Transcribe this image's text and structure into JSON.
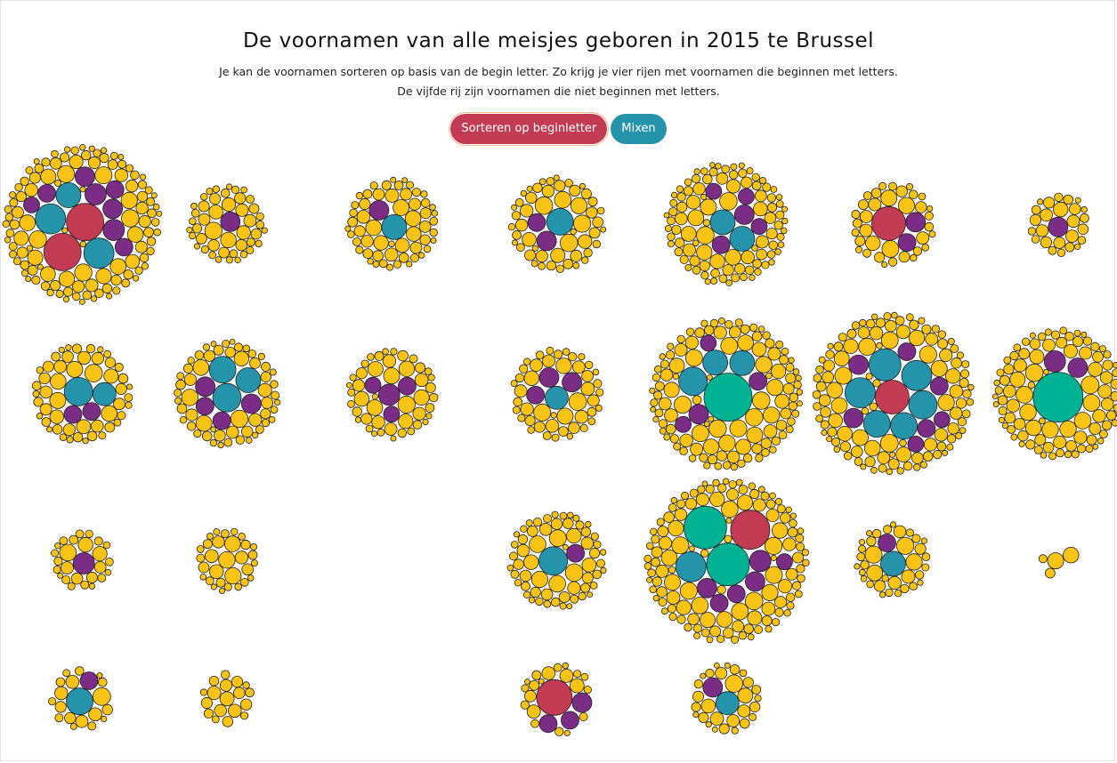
{
  "page": {
    "title": "De voornamen van alle meisjes geboren in 2015 te Brussel",
    "subtitle_line1": "Je kan de voornamen sorteren op basis van de begin letter. Zo krijg je vier rijen met voornamen die beginnen met letters.",
    "subtitle_line2": "De vijfde rij zijn voornamen die niet beginnen met letters."
  },
  "controls": {
    "sort_label": "Sorteren op beginletter",
    "mix_label": "Mixen"
  },
  "colors": {
    "yellow": "#f9c316",
    "purple": "#7b2d86",
    "blue": "#2593a9",
    "red": "#c33b52",
    "green": "#00b294",
    "background": "#ffffff"
  },
  "chart_data": {
    "type": "bubble-clusters",
    "title": "De voornamen van alle meisjes geboren in 2015 te Brussel",
    "grid": false,
    "rows": 4,
    "columns": 7,
    "clusters": [
      {
        "row": 1,
        "col": 1,
        "small": 110,
        "big": [
          {
            "c": "red",
            "r": 21
          },
          {
            "c": "red",
            "r": 21
          },
          {
            "c": "blue",
            "r": 17
          },
          {
            "c": "blue",
            "r": 17
          },
          {
            "c": "blue",
            "r": 14
          },
          {
            "c": "purple",
            "r": 12
          },
          {
            "c": "purple",
            "r": 12
          },
          {
            "c": "purple",
            "r": 11
          },
          {
            "c": "purple",
            "r": 11
          },
          {
            "c": "purple",
            "r": 10
          },
          {
            "c": "purple",
            "r": 10
          },
          {
            "c": "purple",
            "r": 10
          },
          {
            "c": "purple",
            "r": 9
          }
        ]
      },
      {
        "row": 1,
        "col": 2,
        "small": 45,
        "big": [
          {
            "c": "purple",
            "r": 11
          }
        ]
      },
      {
        "row": 1,
        "col": 3,
        "small": 55,
        "big": [
          {
            "c": "blue",
            "r": 14
          },
          {
            "c": "purple",
            "r": 11
          }
        ]
      },
      {
        "row": 1,
        "col": 4,
        "small": 50,
        "big": [
          {
            "c": "blue",
            "r": 15
          },
          {
            "c": "purple",
            "r": 11
          },
          {
            "c": "purple",
            "r": 10
          }
        ]
      },
      {
        "row": 1,
        "col": 5,
        "small": 95,
        "big": [
          {
            "c": "blue",
            "r": 14
          },
          {
            "c": "blue",
            "r": 14
          },
          {
            "c": "purple",
            "r": 11
          },
          {
            "c": "purple",
            "r": 10
          },
          {
            "c": "purple",
            "r": 9
          },
          {
            "c": "purple",
            "r": 9
          },
          {
            "c": "purple",
            "r": 9
          }
        ]
      },
      {
        "row": 1,
        "col": 6,
        "small": 35,
        "big": [
          {
            "c": "red",
            "r": 19
          },
          {
            "c": "purple",
            "r": 11
          },
          {
            "c": "purple",
            "r": 10
          }
        ]
      },
      {
        "row": 1,
        "col": 7,
        "small": 25,
        "big": [
          {
            "c": "purple",
            "r": 11
          }
        ]
      },
      {
        "row": 2,
        "col": 1,
        "small": 50,
        "big": [
          {
            "c": "blue",
            "r": 16
          },
          {
            "c": "blue",
            "r": 13
          },
          {
            "c": "purple",
            "r": 10
          },
          {
            "c": "purple",
            "r": 10
          }
        ]
      },
      {
        "row": 2,
        "col": 2,
        "small": 55,
        "big": [
          {
            "c": "blue",
            "r": 16
          },
          {
            "c": "blue",
            "r": 15
          },
          {
            "c": "blue",
            "r": 14
          },
          {
            "c": "purple",
            "r": 11
          },
          {
            "c": "purple",
            "r": 11
          },
          {
            "c": "purple",
            "r": 10
          },
          {
            "c": "purple",
            "r": 10
          }
        ]
      },
      {
        "row": 2,
        "col": 3,
        "small": 45,
        "big": [
          {
            "c": "purple",
            "r": 12
          },
          {
            "c": "purple",
            "r": 10
          },
          {
            "c": "purple",
            "r": 9
          },
          {
            "c": "purple",
            "r": 9
          }
        ]
      },
      {
        "row": 2,
        "col": 4,
        "small": 45,
        "big": [
          {
            "c": "blue",
            "r": 13
          },
          {
            "c": "purple",
            "r": 11
          },
          {
            "c": "purple",
            "r": 11
          },
          {
            "c": "purple",
            "r": 10
          }
        ]
      },
      {
        "row": 2,
        "col": 5,
        "small": 110,
        "big": [
          {
            "c": "green",
            "r": 27
          },
          {
            "c": "blue",
            "r": 16
          },
          {
            "c": "blue",
            "r": 14
          },
          {
            "c": "blue",
            "r": 14
          },
          {
            "c": "purple",
            "r": 11
          },
          {
            "c": "purple",
            "r": 10
          },
          {
            "c": "purple",
            "r": 9
          },
          {
            "c": "purple",
            "r": 9
          }
        ]
      },
      {
        "row": 2,
        "col": 6,
        "small": 110,
        "big": [
          {
            "c": "red",
            "r": 19
          },
          {
            "c": "blue",
            "r": 18
          },
          {
            "c": "blue",
            "r": 17
          },
          {
            "c": "blue",
            "r": 17
          },
          {
            "c": "blue",
            "r": 16
          },
          {
            "c": "blue",
            "r": 15
          },
          {
            "c": "blue",
            "r": 15
          },
          {
            "c": "purple",
            "r": 11
          },
          {
            "c": "purple",
            "r": 11
          },
          {
            "c": "purple",
            "r": 10
          },
          {
            "c": "purple",
            "r": 10
          },
          {
            "c": "purple",
            "r": 10
          },
          {
            "c": "purple",
            "r": 9
          },
          {
            "c": "purple",
            "r": 9
          }
        ]
      },
      {
        "row": 2,
        "col": 7,
        "small": 95,
        "big": [
          {
            "c": "green",
            "r": 28
          },
          {
            "c": "purple",
            "r": 12
          },
          {
            "c": "purple",
            "r": 11
          }
        ]
      },
      {
        "row": 3,
        "col": 1,
        "small": 25,
        "big": [
          {
            "c": "purple",
            "r": 12
          }
        ]
      },
      {
        "row": 3,
        "col": 2,
        "small": 30,
        "big": []
      },
      {
        "row": 3,
        "col": 4,
        "small": 60,
        "big": [
          {
            "c": "blue",
            "r": 16
          },
          {
            "c": "purple",
            "r": 10
          }
        ]
      },
      {
        "row": 3,
        "col": 5,
        "small": 120,
        "big": [
          {
            "c": "green",
            "r": 24
          },
          {
            "c": "green",
            "r": 24
          },
          {
            "c": "red",
            "r": 22
          },
          {
            "c": "blue",
            "r": 17
          },
          {
            "c": "purple",
            "r": 12
          },
          {
            "c": "purple",
            "r": 11
          },
          {
            "c": "purple",
            "r": 11
          },
          {
            "c": "purple",
            "r": 10
          },
          {
            "c": "purple",
            "r": 10
          },
          {
            "c": "purple",
            "r": 9
          }
        ]
      },
      {
        "row": 3,
        "col": 6,
        "small": 35,
        "big": [
          {
            "c": "blue",
            "r": 14
          },
          {
            "c": "purple",
            "r": 10
          }
        ]
      },
      {
        "row": 3,
        "col": 7,
        "small": 4,
        "big": []
      },
      {
        "row": 4,
        "col": 1,
        "small": 18,
        "big": [
          {
            "c": "blue",
            "r": 15
          },
          {
            "c": "purple",
            "r": 10
          }
        ]
      },
      {
        "row": 4,
        "col": 2,
        "small": 18,
        "big": []
      },
      {
        "row": 4,
        "col": 4,
        "small": 20,
        "big": [
          {
            "c": "red",
            "r": 20
          },
          {
            "c": "purple",
            "r": 11
          },
          {
            "c": "purple",
            "r": 10
          },
          {
            "c": "purple",
            "r": 10
          }
        ]
      },
      {
        "row": 4,
        "col": 5,
        "small": 28,
        "big": [
          {
            "c": "blue",
            "r": 13
          },
          {
            "c": "purple",
            "r": 11
          }
        ]
      }
    ]
  }
}
